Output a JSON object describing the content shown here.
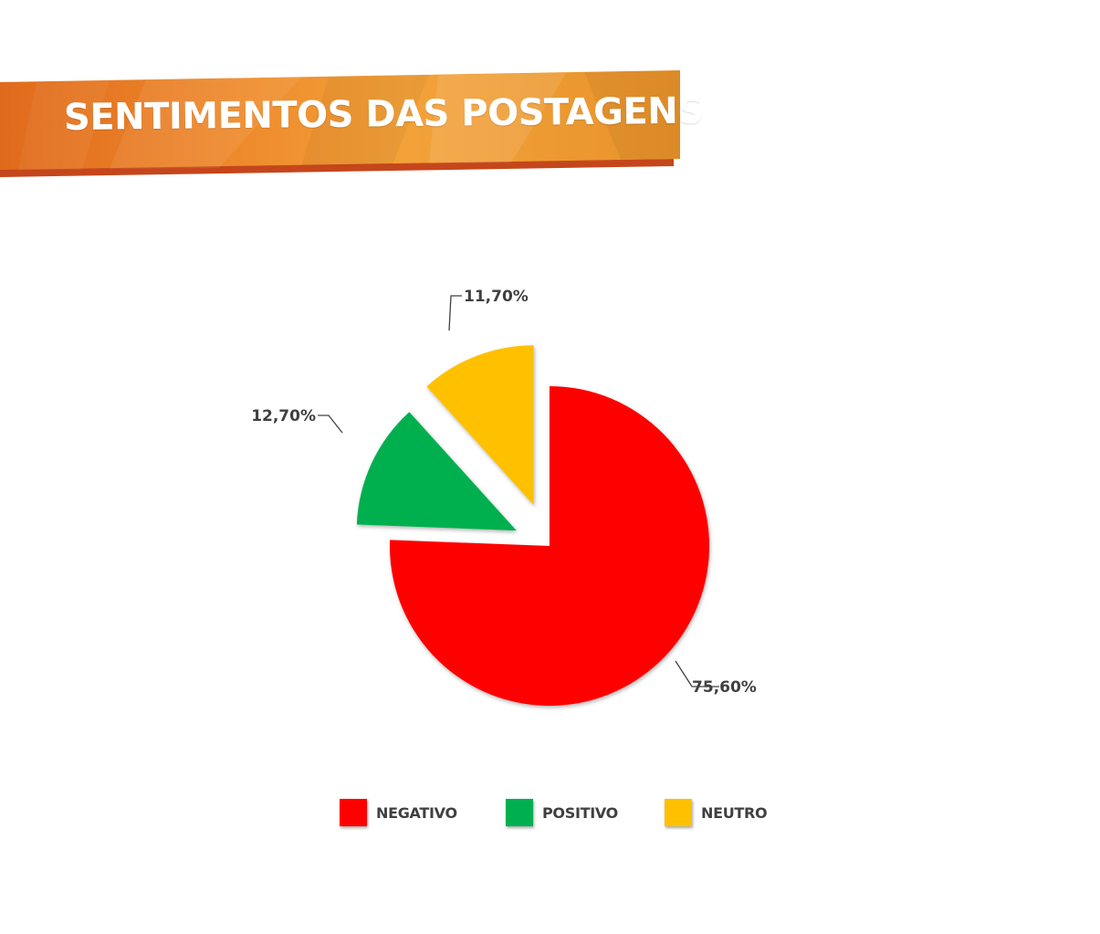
{
  "header": {
    "title": "SENTIMENTOS DAS POSTAGENS",
    "colors": {
      "orange_light": "#F2A43C",
      "orange_dark": "#E36C1E",
      "shadow": "#C84A1A"
    }
  },
  "chart_data": {
    "type": "pie",
    "title": "",
    "series": [
      {
        "name": "NEGATIVO",
        "value": 75.6,
        "label": "75,60%",
        "color": "#FF0000"
      },
      {
        "name": "POSITIVO",
        "value": 12.7,
        "label": "12,70%",
        "color": "#00B050"
      },
      {
        "name": "NEUTRO",
        "value": 11.7,
        "label": "11,70%",
        "color": "#FFC000"
      }
    ],
    "legend_position": "bottom",
    "exploded_slices": [
      "POSITIVO",
      "NEUTRO"
    ]
  }
}
